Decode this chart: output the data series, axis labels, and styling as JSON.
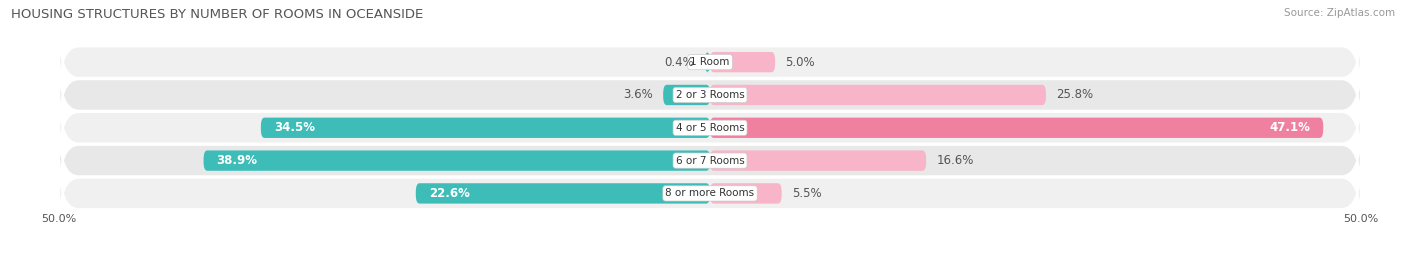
{
  "title": "HOUSING STRUCTURES BY NUMBER OF ROOMS IN OCEANSIDE",
  "source": "Source: ZipAtlas.com",
  "categories": [
    "1 Room",
    "2 or 3 Rooms",
    "4 or 5 Rooms",
    "6 or 7 Rooms",
    "8 or more Rooms"
  ],
  "owner_values": [
    0.4,
    3.6,
    34.5,
    38.9,
    22.6
  ],
  "renter_values": [
    5.0,
    25.8,
    47.1,
    16.6,
    5.5
  ],
  "owner_color": "#3DBCB8",
  "renter_color": "#F080A0",
  "renter_color_light": "#F8B4C8",
  "row_bg_colors": [
    "#F0F0F0",
    "#E8E8E8",
    "#F0F0F0",
    "#E8E8E8",
    "#F0F0F0"
  ],
  "axis_max": 50.0,
  "bar_height": 0.62,
  "title_fontsize": 9.5,
  "source_fontsize": 7.5,
  "label_fontsize": 8.5,
  "cat_fontsize": 7.5,
  "legend_fontsize": 8.5,
  "axis_label_fontsize": 8.0,
  "white_label_threshold": 8.0
}
